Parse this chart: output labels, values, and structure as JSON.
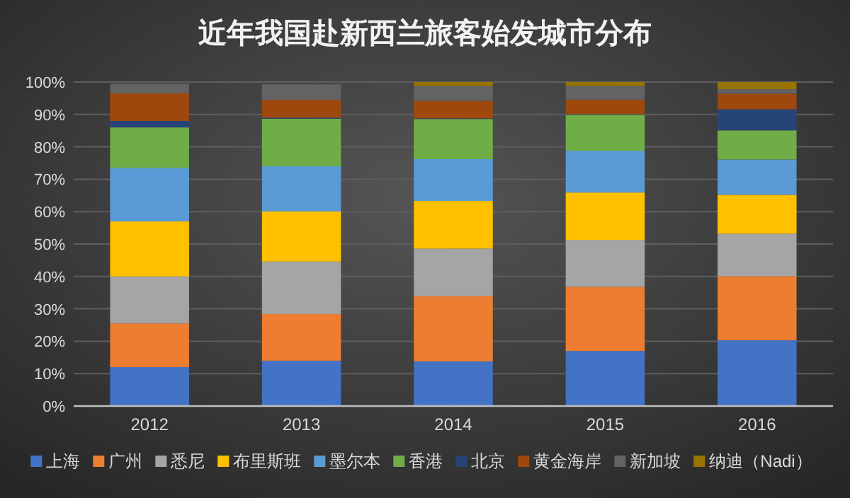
{
  "chart_data": {
    "type": "bar",
    "title": "近年我国赴新西兰旅客始发城市分布",
    "stacked": true,
    "grid": "y",
    "legend": "bottom",
    "categories": [
      "2012",
      "2013",
      "2014",
      "2015",
      "2016"
    ],
    "ylim": [
      0,
      100
    ],
    "yticks": [
      {
        "value": 0,
        "label": "0%"
      },
      {
        "value": 10,
        "label": "10%"
      },
      {
        "value": 20,
        "label": "20%"
      },
      {
        "value": 30,
        "label": "30%"
      },
      {
        "value": 40,
        "label": "40%"
      },
      {
        "value": 50,
        "label": "50%"
      },
      {
        "value": 60,
        "label": "60%"
      },
      {
        "value": 70,
        "label": "70%"
      },
      {
        "value": 80,
        "label": "80%"
      },
      {
        "value": 90,
        "label": "90%"
      },
      {
        "value": 100,
        "label": "100%"
      }
    ],
    "series": [
      {
        "name": "上海",
        "color": "#4472c4",
        "values": [
          12,
          14,
          13.8,
          17,
          20.3
        ]
      },
      {
        "name": "广州",
        "color": "#ed7d31",
        "values": [
          13.5,
          14.4,
          20.2,
          19.8,
          19.8
        ]
      },
      {
        "name": "悉尼",
        "color": "#a5a5a5",
        "values": [
          14.5,
          16.2,
          14.6,
          14.5,
          13.1
        ]
      },
      {
        "name": "布里斯班",
        "color": "#ffc000",
        "values": [
          17,
          15.5,
          14.7,
          14.6,
          12
        ]
      },
      {
        "name": "墨尔本",
        "color": "#5b9bd5",
        "values": [
          16.5,
          13.9,
          12.9,
          12.9,
          10.9
        ]
      },
      {
        "name": "香港",
        "color": "#70ad47",
        "values": [
          12.5,
          14.7,
          12.4,
          11.1,
          9
        ]
      },
      {
        "name": "北京",
        "color": "#264478",
        "values": [
          2,
          0.3,
          0.2,
          0.2,
          6.5
        ]
      },
      {
        "name": "黄金海岸",
        "color": "#9e480e",
        "values": [
          8.5,
          5.5,
          5.4,
          4.5,
          4.8
        ]
      },
      {
        "name": "新加坡",
        "color": "#636363",
        "values": [
          3,
          4.8,
          4.6,
          4.2,
          1.4
        ]
      },
      {
        "name": "纳迪（Nadi）",
        "color": "#997300",
        "values": [
          null,
          null,
          1.2,
          1.2,
          2.2
        ]
      }
    ]
  }
}
